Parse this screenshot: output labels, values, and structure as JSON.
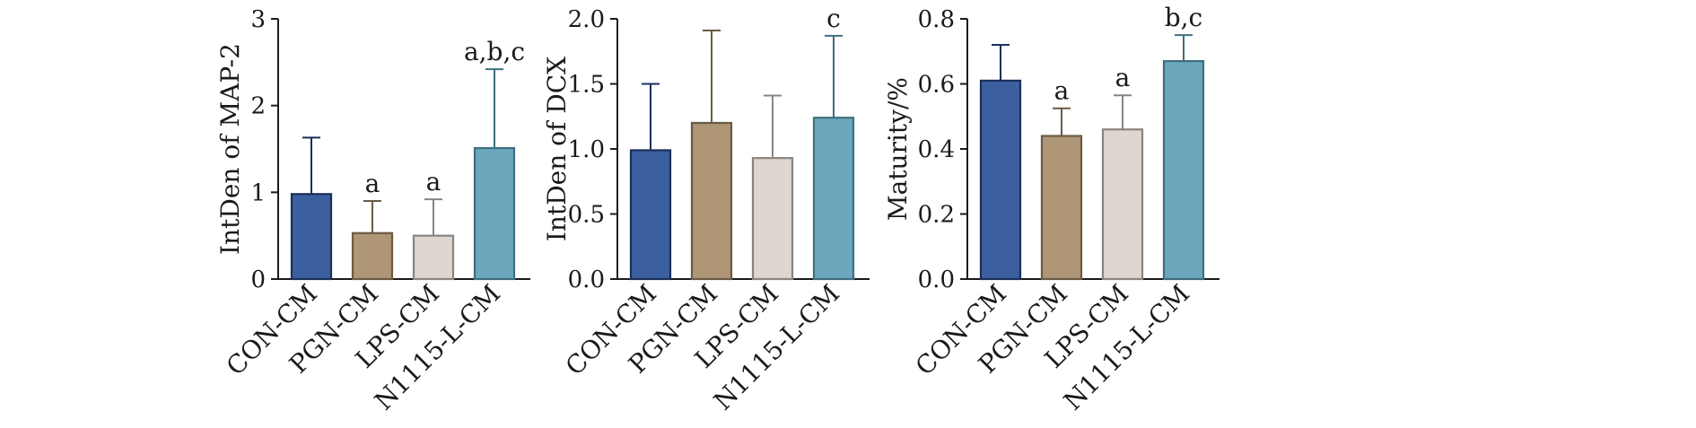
{
  "chart_data": [
    {
      "type": "bar",
      "categories": [
        "CON-CM",
        "PGN-CM",
        "LPS-CM",
        "N1115-L-CM"
      ],
      "values": [
        0.98,
        0.53,
        0.5,
        1.51
      ],
      "errors": [
        0.65,
        0.37,
        0.42,
        0.91
      ],
      "annotations": [
        "",
        "a",
        "a",
        "a,b,c"
      ],
      "ylabel": "IntDen of  MAP-2",
      "ylim": [
        0,
        3
      ],
      "yticks": [
        "0",
        "1",
        "2",
        "3"
      ],
      "grid": false
    },
    {
      "type": "bar",
      "categories": [
        "CON-CM",
        "PGN-CM",
        "LPS-CM",
        "N1115-L-CM"
      ],
      "values": [
        0.99,
        1.2,
        0.93,
        1.24
      ],
      "errors": [
        0.51,
        0.71,
        0.48,
        0.63
      ],
      "annotations": [
        "",
        "",
        "",
        "c"
      ],
      "ylabel": "IntDen of  DCX",
      "ylim": [
        0,
        2.0
      ],
      "yticks": [
        "0.0",
        "0.5",
        "1.0",
        "1.5",
        "2.0"
      ],
      "grid": false
    },
    {
      "type": "bar",
      "categories": [
        "CON-CM",
        "PGN-CM",
        "LPS-CM",
        "N1115-L-CM"
      ],
      "values": [
        0.61,
        0.44,
        0.46,
        0.67
      ],
      "errors": [
        0.11,
        0.085,
        0.105,
        0.08
      ],
      "annotations": [
        "",
        "a",
        "a",
        "b,c"
      ],
      "ylabel": "Maturity/%",
      "ylim": [
        0,
        0.8
      ],
      "yticks": [
        "0.0",
        "0.2",
        "0.4",
        "0.6",
        "0.8"
      ],
      "grid": false
    }
  ],
  "colors": {
    "fills": [
      "#3c5fa0",
      "#ae9676",
      "#dfd6cf",
      "#6ba7bd"
    ],
    "strokes": [
      "#1c2f5a",
      "#6a5a44",
      "#8a8480",
      "#3f6f80"
    ]
  }
}
